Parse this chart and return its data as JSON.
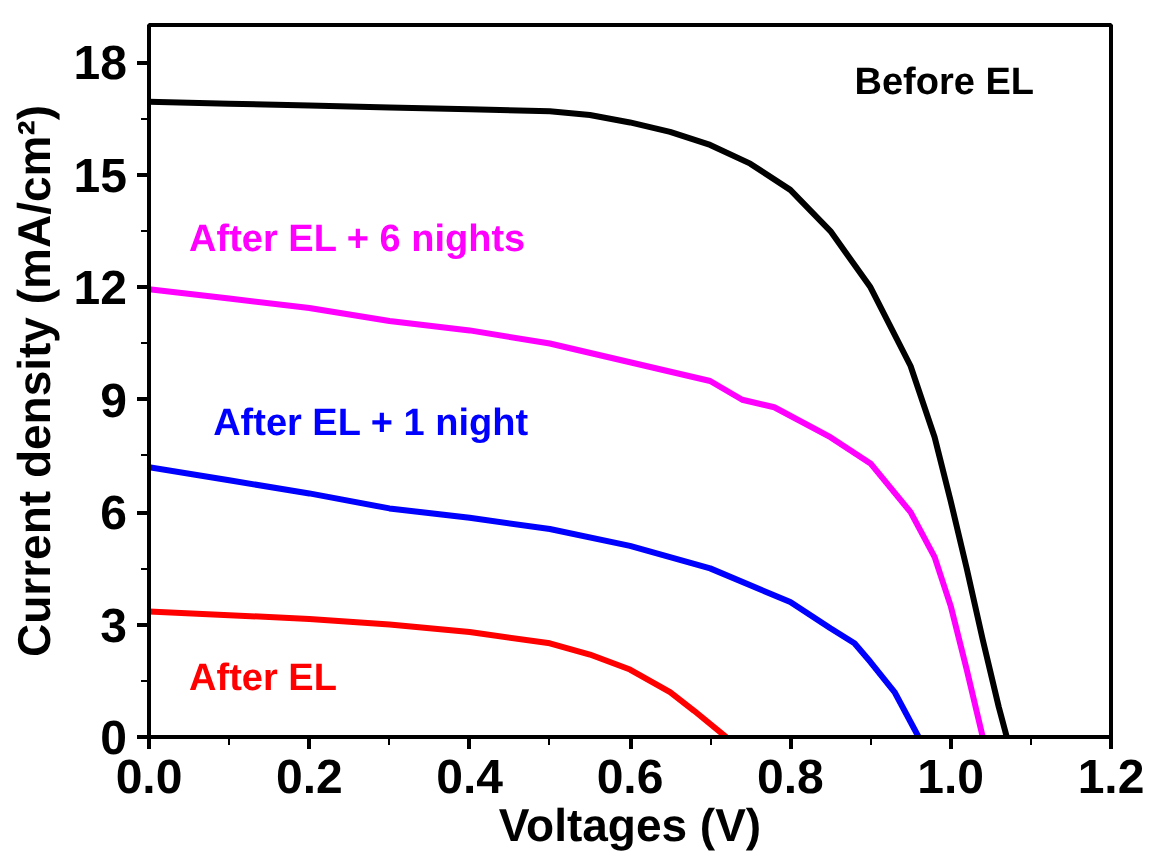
{
  "chart_data": {
    "type": "line",
    "xlabel": "Voltages (V)",
    "ylabel": "Current density (mA/cm²)",
    "xlim": [
      0,
      1.2
    ],
    "ylim": [
      0,
      19
    ],
    "xticks": [
      {
        "value": 0,
        "label": "0.0"
      },
      0.2,
      0.4,
      0.6,
      0.8,
      {
        "value": 1,
        "label": "1.0"
      },
      1.2
    ],
    "yticks": [
      0,
      3,
      6,
      9,
      12,
      15,
      18
    ],
    "grid": false,
    "legend": false,
    "marker": "none",
    "line_style": "solid",
    "series": [
      {
        "name": "Before EL",
        "color": "#000000",
        "x": [
          0,
          0.1,
          0.2,
          0.3,
          0.4,
          0.5,
          0.55,
          0.6,
          0.65,
          0.7,
          0.75,
          0.8,
          0.85,
          0.9,
          0.95,
          0.98,
          1.0,
          1.02,
          1.04,
          1.06,
          1.07
        ],
        "values": [
          16.95,
          16.9,
          16.85,
          16.8,
          16.75,
          16.7,
          16.6,
          16.4,
          16.15,
          15.8,
          15.3,
          14.6,
          13.5,
          12.0,
          9.9,
          8.0,
          6.3,
          4.5,
          2.6,
          0.8,
          0
        ]
      },
      {
        "name": "After EL + 6 nights",
        "color": "#ff00ff",
        "x": [
          0,
          0.1,
          0.2,
          0.3,
          0.4,
          0.5,
          0.6,
          0.7,
          0.74,
          0.78,
          0.85,
          0.9,
          0.95,
          0.98,
          1.0,
          1.02,
          1.04
        ],
        "values": [
          11.95,
          11.7,
          11.45,
          11.1,
          10.85,
          10.5,
          10.0,
          9.5,
          9.0,
          8.8,
          8.0,
          7.3,
          6.0,
          4.8,
          3.5,
          1.8,
          0
        ]
      },
      {
        "name": "After EL + 1 night",
        "color": "#0000ff",
        "x": [
          0,
          0.1,
          0.2,
          0.3,
          0.4,
          0.5,
          0.6,
          0.7,
          0.8,
          0.85,
          0.88,
          0.9,
          0.93,
          0.96
        ],
        "values": [
          7.2,
          6.85,
          6.5,
          6.1,
          5.85,
          5.55,
          5.1,
          4.5,
          3.6,
          2.9,
          2.5,
          2.0,
          1.2,
          0
        ]
      },
      {
        "name": "After EL",
        "color": "#ff0000",
        "x": [
          0,
          0.1,
          0.2,
          0.3,
          0.4,
          0.5,
          0.55,
          0.6,
          0.65,
          0.68,
          0.72
        ],
        "values": [
          3.35,
          3.25,
          3.15,
          3.0,
          2.8,
          2.5,
          2.2,
          1.8,
          1.2,
          0.7,
          0
        ]
      }
    ]
  }
}
